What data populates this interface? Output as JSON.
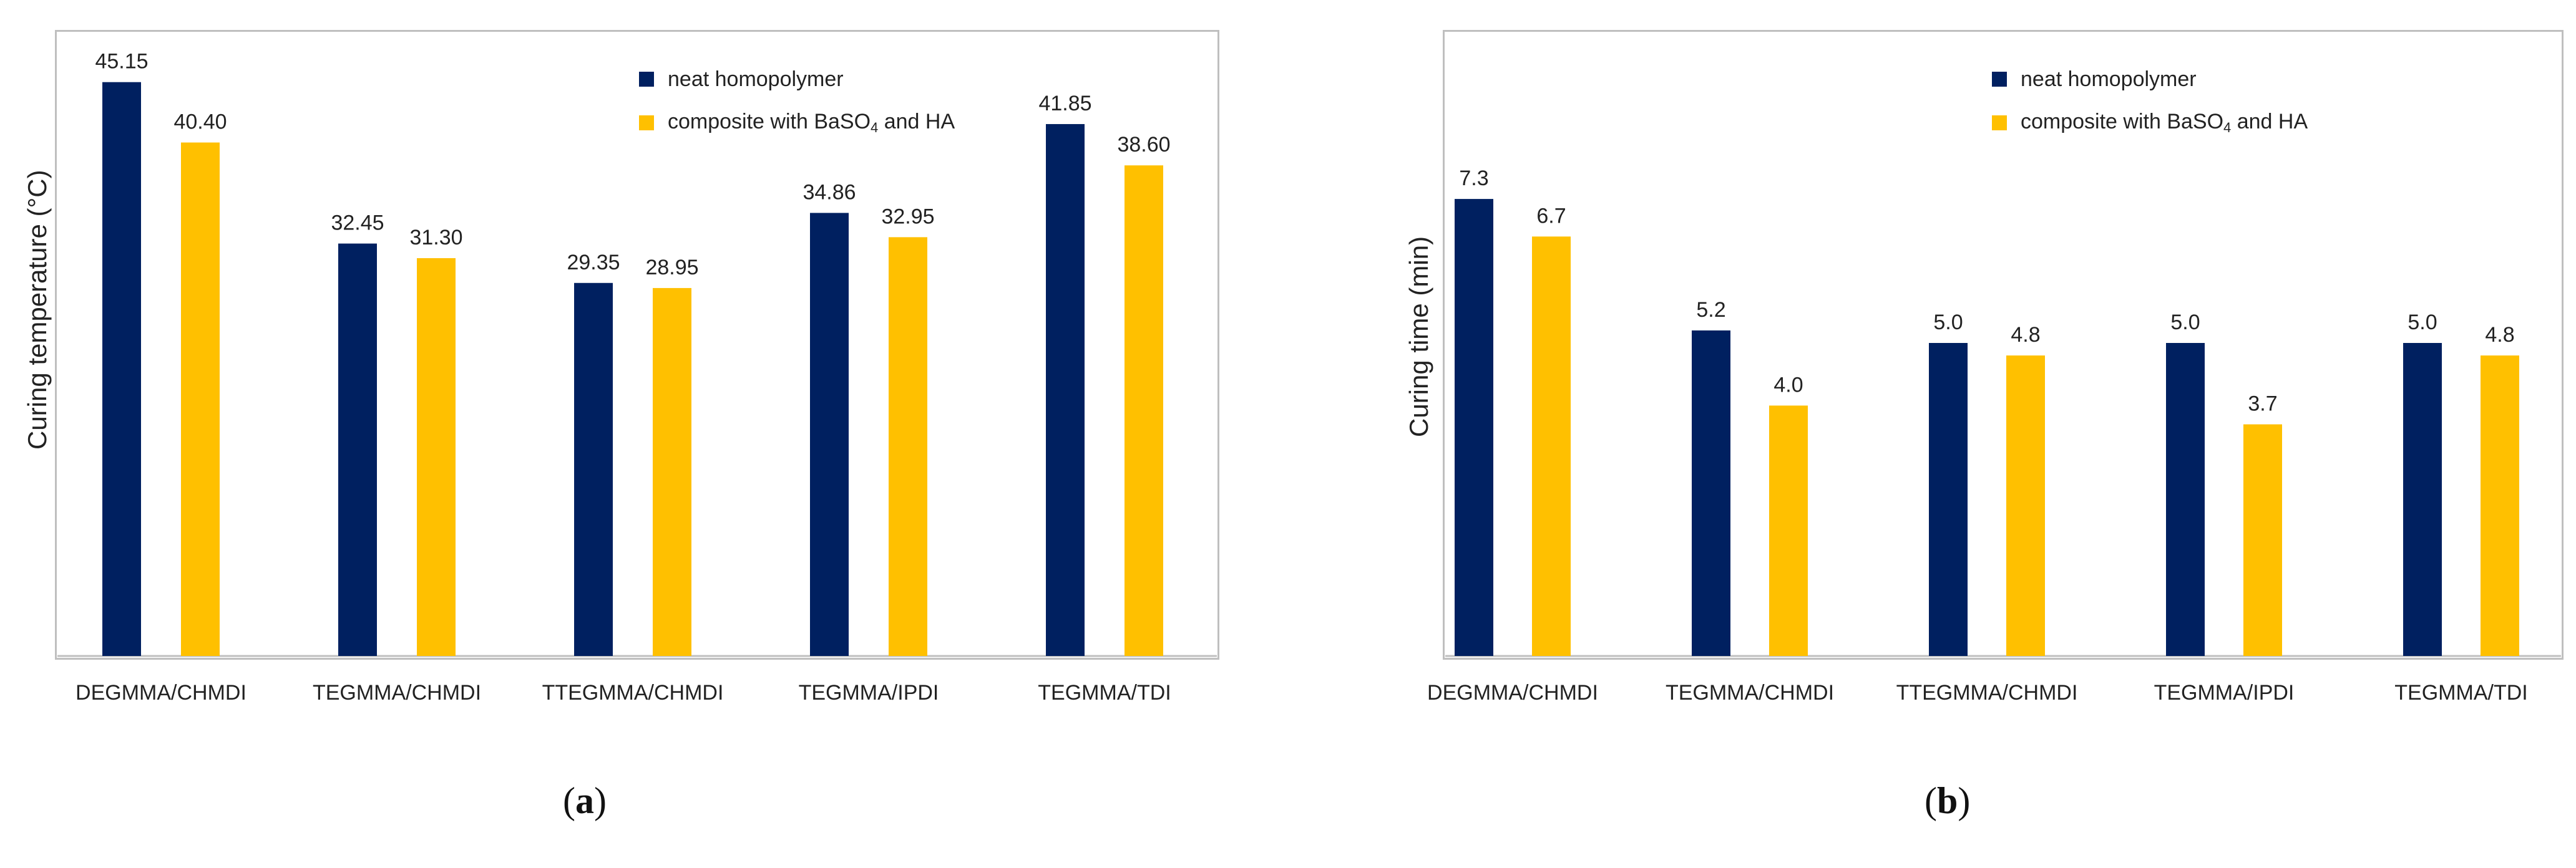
{
  "colors": {
    "neat": "#002060",
    "composite": "#FFC000",
    "axis": "#bfbfbf"
  },
  "legend": {
    "neat": "neat homopolymer",
    "composite_prefix": "composite with BaSO",
    "composite_sub": "4",
    "composite_suffix": " and HA"
  },
  "chart_data": [
    {
      "type": "bar",
      "panel_label": "a",
      "ylabel": "Curing temperature (°C)",
      "categories": [
        "DEGMMA/CHMDI",
        "TEGMMA/CHMDI",
        "TTEGMMA/CHMDI",
        "TEGMMA/IPDI",
        "TEGMMA/TDI"
      ],
      "series": [
        {
          "name": "neat homopolymer",
          "values": [
            45.15,
            32.45,
            29.35,
            34.86,
            41.85
          ],
          "labels": [
            "45.15",
            "32.45",
            "29.35",
            "34.86",
            "41.85"
          ]
        },
        {
          "name": "composite with BaSO4 and HA",
          "values": [
            40.4,
            31.3,
            28.95,
            32.95,
            38.6
          ],
          "labels": [
            "40.40",
            "31.30",
            "28.95",
            "32.95",
            "38.60"
          ]
        }
      ],
      "ylim": [
        0,
        47
      ]
    },
    {
      "type": "bar",
      "panel_label": "b",
      "ylabel": "Curing time (min)",
      "categories": [
        "DEGMMA/CHMDI",
        "TEGMMA/CHMDI",
        "TTEGMMA/CHMDI",
        "TEGMMA/IPDI",
        "TEGMMA/TDI"
      ],
      "series": [
        {
          "name": "neat homopolymer",
          "values": [
            7.3,
            5.2,
            5.0,
            5.0,
            5.0
          ],
          "labels": [
            "7.3",
            "5.2",
            "5.0",
            "5.0",
            "5.0"
          ]
        },
        {
          "name": "composite with BaSO4 and HA",
          "values": [
            6.7,
            4.0,
            4.8,
            3.7,
            4.8
          ],
          "labels": [
            "6.7",
            "4.0",
            "4.8",
            "3.7",
            "4.8"
          ]
        }
      ],
      "ylim": [
        0,
        10
      ]
    }
  ]
}
